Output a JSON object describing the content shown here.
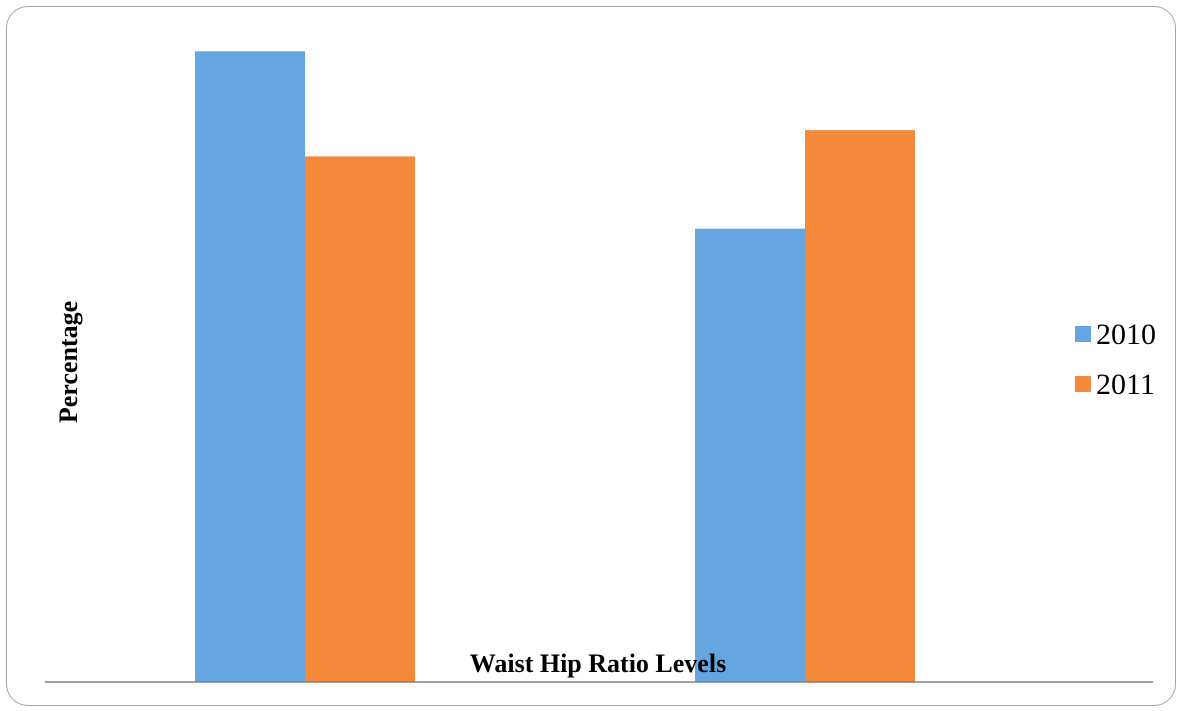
{
  "chart_data": {
    "type": "bar",
    "categories": [
      "",
      ""
    ],
    "series": [
      {
        "name": "2010",
        "values": [
          96,
          69
        ],
        "color": "#65a5e0"
      },
      {
        "name": "2011",
        "values": [
          80,
          84
        ],
        "color": "#f5893a"
      }
    ],
    "xlabel": "Waist Hip Ratio Levels",
    "ylabel": "Percentage",
    "ylim": [
      0,
      100
    ],
    "grid": false,
    "legend": "right",
    "tick_labels_shown": false
  }
}
